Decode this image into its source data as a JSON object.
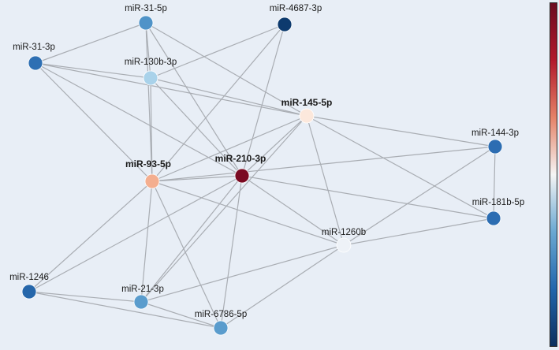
{
  "network": {
    "nodes": [
      {
        "id": "miR-31-5p",
        "label": "miR-31-5p",
        "bold": false,
        "color": "#4f93c8"
      },
      {
        "id": "miR-4687-3p",
        "label": "miR-4687-3p",
        "bold": false,
        "color": "#0d3a6e"
      },
      {
        "id": "miR-31-3p",
        "label": "miR-31-3p",
        "bold": false,
        "color": "#2e6fb3"
      },
      {
        "id": "miR-130b-3p",
        "label": "miR-130b-3p",
        "bold": false,
        "color": "#a9d2ea"
      },
      {
        "id": "miR-145-5p",
        "label": "miR-145-5p",
        "bold": true,
        "color": "#fce8dc"
      },
      {
        "id": "miR-144-3p",
        "label": "miR-144-3p",
        "bold": false,
        "color": "#2c6db2"
      },
      {
        "id": "miR-93-5p",
        "label": "miR-93-5p",
        "bold": true,
        "color": "#f4ae8f"
      },
      {
        "id": "miR-210-3p",
        "label": "miR-210-3p",
        "bold": true,
        "color": "#7a0a22"
      },
      {
        "id": "miR-181b-5p",
        "label": "miR-181b-5p",
        "bold": false,
        "color": "#2c6db2"
      },
      {
        "id": "miR-1260b",
        "label": "miR-1260b",
        "bold": false,
        "color": "#eef2f7"
      },
      {
        "id": "miR-1246",
        "label": "miR-1246",
        "bold": false,
        "color": "#2566aa"
      },
      {
        "id": "miR-21-3p",
        "label": "miR-21-3p",
        "bold": false,
        "color": "#5a9ccd"
      },
      {
        "id": "miR-6786-5p",
        "label": "miR-6786-5p",
        "bold": false,
        "color": "#5a9ccd"
      }
    ],
    "edges": [
      [
        "miR-31-5p",
        "miR-31-3p"
      ],
      [
        "miR-31-5p",
        "miR-130b-3p"
      ],
      [
        "miR-31-5p",
        "miR-93-5p"
      ],
      [
        "miR-31-5p",
        "miR-210-3p"
      ],
      [
        "miR-31-5p",
        "miR-145-5p"
      ],
      [
        "miR-4687-3p",
        "miR-130b-3p"
      ],
      [
        "miR-4687-3p",
        "miR-93-5p"
      ],
      [
        "miR-4687-3p",
        "miR-210-3p"
      ],
      [
        "miR-31-3p",
        "miR-130b-3p"
      ],
      [
        "miR-31-3p",
        "miR-145-5p"
      ],
      [
        "miR-31-3p",
        "miR-210-3p"
      ],
      [
        "miR-31-3p",
        "miR-93-5p"
      ],
      [
        "miR-130b-3p",
        "miR-145-5p"
      ],
      [
        "miR-130b-3p",
        "miR-93-5p"
      ],
      [
        "miR-130b-3p",
        "miR-210-3p"
      ],
      [
        "miR-145-5p",
        "miR-144-3p"
      ],
      [
        "miR-145-5p",
        "miR-93-5p"
      ],
      [
        "miR-145-5p",
        "miR-210-3p"
      ],
      [
        "miR-145-5p",
        "miR-1260b"
      ],
      [
        "miR-145-5p",
        "miR-181b-5p"
      ],
      [
        "miR-145-5p",
        "miR-21-3p"
      ],
      [
        "miR-144-3p",
        "miR-181b-5p"
      ],
      [
        "miR-144-3p",
        "miR-93-5p"
      ],
      [
        "miR-144-3p",
        "miR-1260b"
      ],
      [
        "miR-93-5p",
        "miR-210-3p"
      ],
      [
        "miR-93-5p",
        "miR-1246"
      ],
      [
        "miR-93-5p",
        "miR-21-3p"
      ],
      [
        "miR-93-5p",
        "miR-6786-5p"
      ],
      [
        "miR-93-5p",
        "miR-1260b"
      ],
      [
        "miR-210-3p",
        "miR-181b-5p"
      ],
      [
        "miR-210-3p",
        "miR-1260b"
      ],
      [
        "miR-210-3p",
        "miR-1246"
      ],
      [
        "miR-210-3p",
        "miR-21-3p"
      ],
      [
        "miR-210-3p",
        "miR-6786-5p"
      ],
      [
        "miR-1260b",
        "miR-181b-5p"
      ],
      [
        "miR-1260b",
        "miR-21-3p"
      ],
      [
        "miR-1260b",
        "miR-6786-5p"
      ],
      [
        "miR-1246",
        "miR-21-3p"
      ],
      [
        "miR-1246",
        "miR-6786-5p"
      ],
      [
        "miR-21-3p",
        "miR-6786-5p"
      ]
    ]
  },
  "colorbar": {
    "gradient": [
      "#6b0a1f",
      "#b2182b",
      "#e58267",
      "#f5f5f5",
      "#6aa8d2",
      "#2166ac",
      "#0c2f5e"
    ]
  },
  "background_color": "#e8eef6"
}
